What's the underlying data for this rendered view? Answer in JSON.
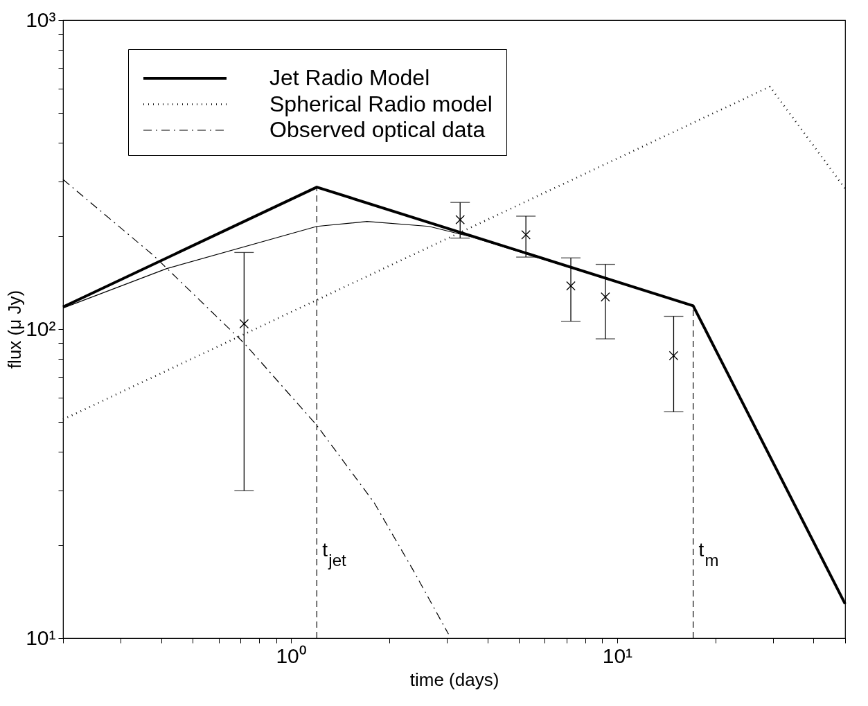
{
  "chart_data": {
    "type": "line",
    "xlabel": "time (days)",
    "ylabel": "flux (μ Jy)",
    "log": "xy",
    "grid": false,
    "legend": "top left",
    "xlim": [
      0.2,
      50
    ],
    "ylim": [
      10,
      1000
    ],
    "xticks": [
      {
        "value": 0.2,
        "label": null
      },
      {
        "value": 0.3,
        "label": null
      },
      {
        "value": 0.4,
        "label": null
      },
      {
        "value": 0.5,
        "label": null
      },
      {
        "value": 0.6,
        "label": null
      },
      {
        "value": 0.7,
        "label": null
      },
      {
        "value": 0.8,
        "label": null
      },
      {
        "value": 0.9,
        "label": null
      },
      {
        "value": 1,
        "label": "10⁰"
      },
      {
        "value": 2,
        "label": null
      },
      {
        "value": 3,
        "label": null
      },
      {
        "value": 4,
        "label": null
      },
      {
        "value": 5,
        "label": null
      },
      {
        "value": 6,
        "label": null
      },
      {
        "value": 7,
        "label": null
      },
      {
        "value": 8,
        "label": null
      },
      {
        "value": 9,
        "label": null
      },
      {
        "value": 10,
        "label": "10¹"
      },
      {
        "value": 20,
        "label": null
      },
      {
        "value": 30,
        "label": null
      },
      {
        "value": 40,
        "label": null
      },
      {
        "value": 50,
        "label": null
      }
    ],
    "yticks": [
      {
        "value": 10,
        "label": "10¹"
      },
      {
        "value": 20,
        "label": null
      },
      {
        "value": 30,
        "label": null
      },
      {
        "value": 40,
        "label": null
      },
      {
        "value": 50,
        "label": null
      },
      {
        "value": 60,
        "label": null
      },
      {
        "value": 70,
        "label": null
      },
      {
        "value": 80,
        "label": null
      },
      {
        "value": 90,
        "label": null
      },
      {
        "value": 100,
        "label": "10²"
      },
      {
        "value": 200,
        "label": null
      },
      {
        "value": 300,
        "label": null
      },
      {
        "value": 400,
        "label": null
      },
      {
        "value": 500,
        "label": null
      },
      {
        "value": 600,
        "label": null
      },
      {
        "value": 700,
        "label": null
      },
      {
        "value": 800,
        "label": null
      },
      {
        "value": 900,
        "label": null
      },
      {
        "value": 1000,
        "label": "10³"
      }
    ],
    "series": [
      {
        "name": "Jet Radio Model",
        "type": "line",
        "line_style": "solid",
        "color": "#000000",
        "x": [
          0.2,
          1.2,
          17.1,
          50
        ],
        "values": [
          118,
          288,
          119,
          12.9
        ]
      },
      {
        "name": "Spherical Radio model",
        "type": "line",
        "line_style": "dotted",
        "color": "#000000",
        "x": [
          0.2,
          29.4,
          50
        ],
        "values": [
          51,
          609,
          285
        ]
      },
      {
        "name": "Observed optical data",
        "type": "line",
        "line_style": "dashdot",
        "color": "#000000",
        "x": [
          0.2,
          0.379,
          0.721,
          1.2,
          1.8,
          2.36,
          3.04
        ],
        "values": [
          305,
          173,
          89.7,
          48.8,
          27.4,
          16.7,
          10.3
        ]
      },
      {
        "type": "line",
        "line_style": "solid",
        "color": "#000000",
        "x": [
          0.2,
          0.416,
          1.2,
          1.71,
          2.65,
          3.56,
          11.9
        ],
        "values": [
          117,
          157,
          215,
          223,
          215,
          199,
          134
        ]
      },
      {
        "type": "scatter",
        "marker": "cross",
        "color": "#000000",
        "x": [
          0.718,
          3.3,
          5.25,
          7.21,
          9.2,
          14.9
        ],
        "values": [
          104,
          226,
          202,
          138,
          127,
          82
        ],
        "errors": [
          [
            30,
            177
          ],
          [
            197,
            257
          ],
          [
            171,
            232
          ],
          [
            106,
            170
          ],
          [
            93,
            162
          ],
          [
            54,
            110
          ]
        ]
      }
    ],
    "ref_lines": [
      {
        "axis": "x",
        "value": 1.2,
        "label": "t$_{jet}$",
        "line_style": "dashed"
      },
      {
        "axis": "x",
        "value": 17.1,
        "label": "t$_{m}$",
        "line_style": "dashed"
      }
    ]
  }
}
